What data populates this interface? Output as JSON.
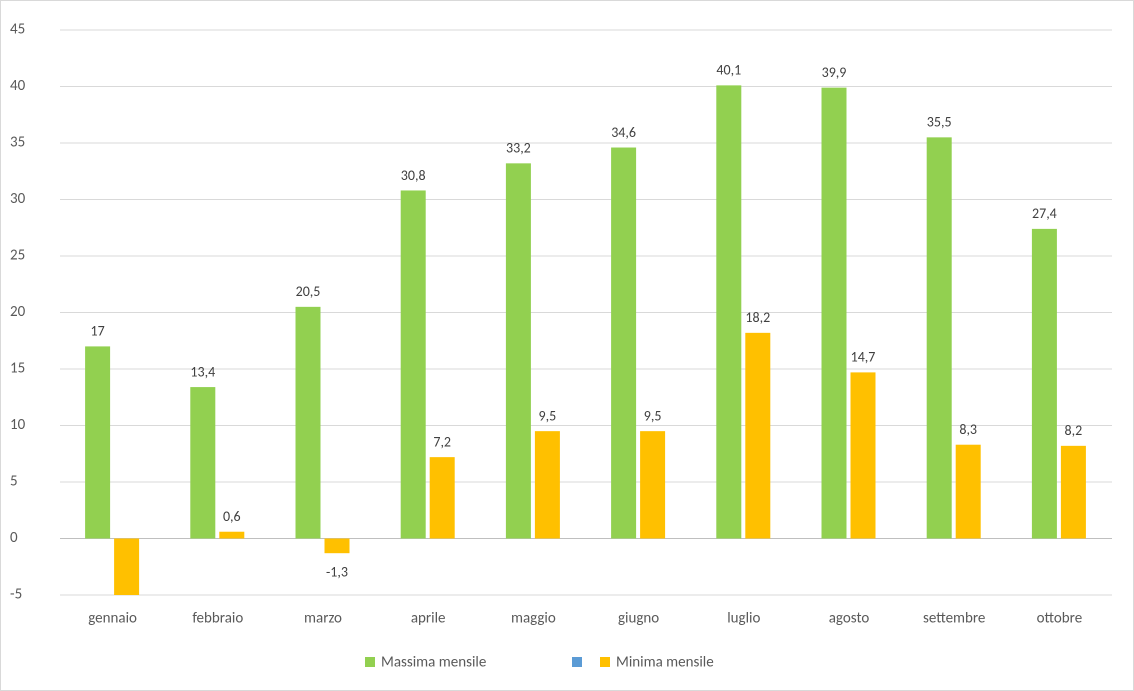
{
  "chart_data": {
    "type": "bar",
    "categories": [
      "gennaio",
      "febbraio",
      "marzo",
      "aprile",
      "maggio",
      "giugno",
      "luglio",
      "agosto",
      "settembre",
      "ottobre"
    ],
    "series": [
      {
        "name": "Massima mensile",
        "color": "#92d050",
        "values": [
          17,
          13.4,
          20.5,
          30.8,
          33.2,
          34.6,
          40.1,
          39.9,
          35.5,
          27.4
        ],
        "value_labels": [
          "17",
          "13,4",
          "20,5",
          "30,8",
          "33,2",
          "34,6",
          "40,1",
          "39,9",
          "35,5",
          "27,4"
        ]
      },
      {
        "name": "Minima mensile",
        "color": "#ffc000",
        "values": [
          -6,
          0.6,
          -1.3,
          7.2,
          9.5,
          9.5,
          18.2,
          14.7,
          8.3,
          8.2
        ],
        "value_labels": [
          null,
          "0,6",
          "-1,3",
          "7,2",
          "9,5",
          "9,5",
          "18,2",
          "14,7",
          "8,3",
          "8,2"
        ]
      }
    ],
    "ylim": [
      -5,
      45
    ],
    "yticks": [
      -5,
      0,
      5,
      10,
      15,
      20,
      25,
      30,
      35,
      40,
      45
    ],
    "grid": true
  }
}
